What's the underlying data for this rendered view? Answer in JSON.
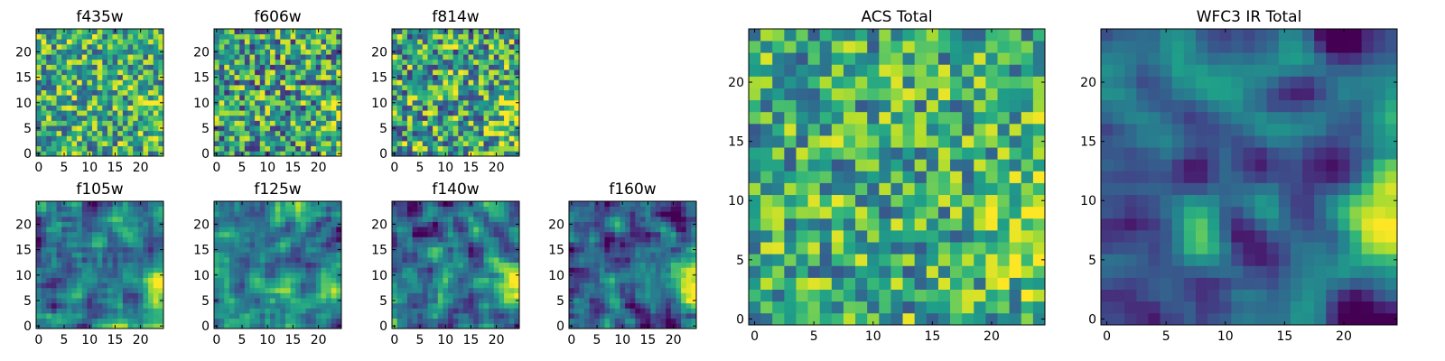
{
  "figure": {
    "description_type": "multi-panel pixel-intensity image grid",
    "colormap": "viridis"
  },
  "chart_data": [
    {
      "id": "f435w",
      "type": "heatmap",
      "title": "f435w",
      "grid_size": 25,
      "xlim": [
        -0.5,
        24.5
      ],
      "ylim": [
        -0.5,
        24.5
      ],
      "xticks": [
        0,
        5,
        10,
        15,
        20
      ],
      "yticks": [
        0,
        5,
        10,
        15,
        20
      ],
      "xlabel": "",
      "ylabel": ""
    },
    {
      "id": "f606w",
      "type": "heatmap",
      "title": "f606w",
      "grid_size": 25,
      "xlim": [
        -0.5,
        24.5
      ],
      "ylim": [
        -0.5,
        24.5
      ],
      "xticks": [
        0,
        5,
        10,
        15,
        20
      ],
      "yticks": [
        0,
        5,
        10,
        15,
        20
      ],
      "xlabel": "",
      "ylabel": ""
    },
    {
      "id": "f814w",
      "type": "heatmap",
      "title": "f814w",
      "grid_size": 25,
      "xlim": [
        -0.5,
        24.5
      ],
      "ylim": [
        -0.5,
        24.5
      ],
      "xticks": [
        0,
        5,
        10,
        15,
        20
      ],
      "yticks": [
        0,
        5,
        10,
        15,
        20
      ],
      "xlabel": "",
      "ylabel": ""
    },
    {
      "id": "f105w",
      "type": "heatmap",
      "title": "f105w",
      "grid_size": 25,
      "xlim": [
        -0.5,
        24.5
      ],
      "ylim": [
        -0.5,
        24.5
      ],
      "xticks": [
        0,
        5,
        10,
        15,
        20
      ],
      "yticks": [
        0,
        5,
        10,
        15,
        20
      ],
      "xlabel": "",
      "ylabel": ""
    },
    {
      "id": "f125w",
      "type": "heatmap",
      "title": "f125w",
      "grid_size": 25,
      "xlim": [
        -0.5,
        24.5
      ],
      "ylim": [
        -0.5,
        24.5
      ],
      "xticks": [
        0,
        5,
        10,
        15,
        20
      ],
      "yticks": [
        0,
        5,
        10,
        15,
        20
      ],
      "xlabel": "",
      "ylabel": ""
    },
    {
      "id": "f140w",
      "type": "heatmap",
      "title": "f140w",
      "grid_size": 25,
      "xlim": [
        -0.5,
        24.5
      ],
      "ylim": [
        -0.5,
        24.5
      ],
      "xticks": [
        0,
        5,
        10,
        15,
        20
      ],
      "yticks": [
        0,
        5,
        10,
        15,
        20
      ],
      "xlabel": "",
      "ylabel": ""
    },
    {
      "id": "f160w",
      "type": "heatmap",
      "title": "f160w",
      "grid_size": 25,
      "xlim": [
        -0.5,
        24.5
      ],
      "ylim": [
        -0.5,
        24.5
      ],
      "xticks": [
        0,
        5,
        10,
        15,
        20
      ],
      "yticks": [
        0,
        5,
        10,
        15,
        20
      ],
      "xlabel": "",
      "ylabel": ""
    },
    {
      "id": "acs_total",
      "type": "heatmap",
      "title": "ACS Total",
      "grid_size": 25,
      "xlim": [
        -0.5,
        24.5
      ],
      "ylim": [
        -0.5,
        24.5
      ],
      "xticks": [
        0,
        5,
        10,
        15,
        20
      ],
      "yticks": [
        0,
        5,
        10,
        15,
        20
      ],
      "xlabel": "",
      "ylabel": ""
    },
    {
      "id": "wfc3_ir_total",
      "type": "heatmap",
      "title": "WFC3 IR Total",
      "grid_size": 25,
      "xlim": [
        -0.5,
        24.5
      ],
      "ylim": [
        -0.5,
        24.5
      ],
      "xticks": [
        0,
        5,
        10,
        15,
        20
      ],
      "yticks": [
        0,
        5,
        10,
        15,
        20
      ],
      "xlabel": "",
      "ylabel": ""
    }
  ]
}
